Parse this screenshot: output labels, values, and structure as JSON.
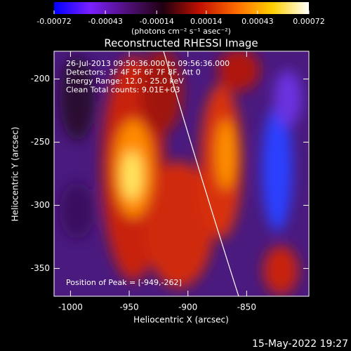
{
  "chart_data": {
    "type": "image",
    "title": "Reconstructed RHESSI Image",
    "xlabel": "Heliocentric X (arcsec)",
    "ylabel": "Heliocentric Y (arcsec)",
    "xlim": [
      -1014,
      -797
    ],
    "xticks": [
      -1000,
      -950,
      -900,
      -850
    ],
    "ylim": [
      -178,
      -372
    ],
    "yticks": [
      -200,
      -250,
      -300,
      -350
    ],
    "colorbar": {
      "label": "(photons cm⁻² s⁻¹ asec⁻²)",
      "lim": [
        -0.00072,
        0.00072
      ],
      "ticks": [
        -0.00072,
        -0.00043,
        -0.00014,
        0.00014,
        0.00043,
        0.00072
      ],
      "colormap": [
        "#0000ff",
        "#7a20ff",
        "#50107a",
        "#200010",
        "#c01000",
        "#ff6a00",
        "#ffd000",
        "#ffffff"
      ]
    },
    "annotations": [
      "26-Jul-2013 09:50:36.000 to 09:56:36.000",
      "Detectors: 3F 4F 5F 6F 7F 8F, Att 0",
      "Energy Range: 12.0 - 25.0 keV",
      "Clean    Total counts: 9.01E+03"
    ],
    "peak_label": "Position of Peak = [-949,-262]",
    "footer": "15-May-2022 19:27"
  }
}
